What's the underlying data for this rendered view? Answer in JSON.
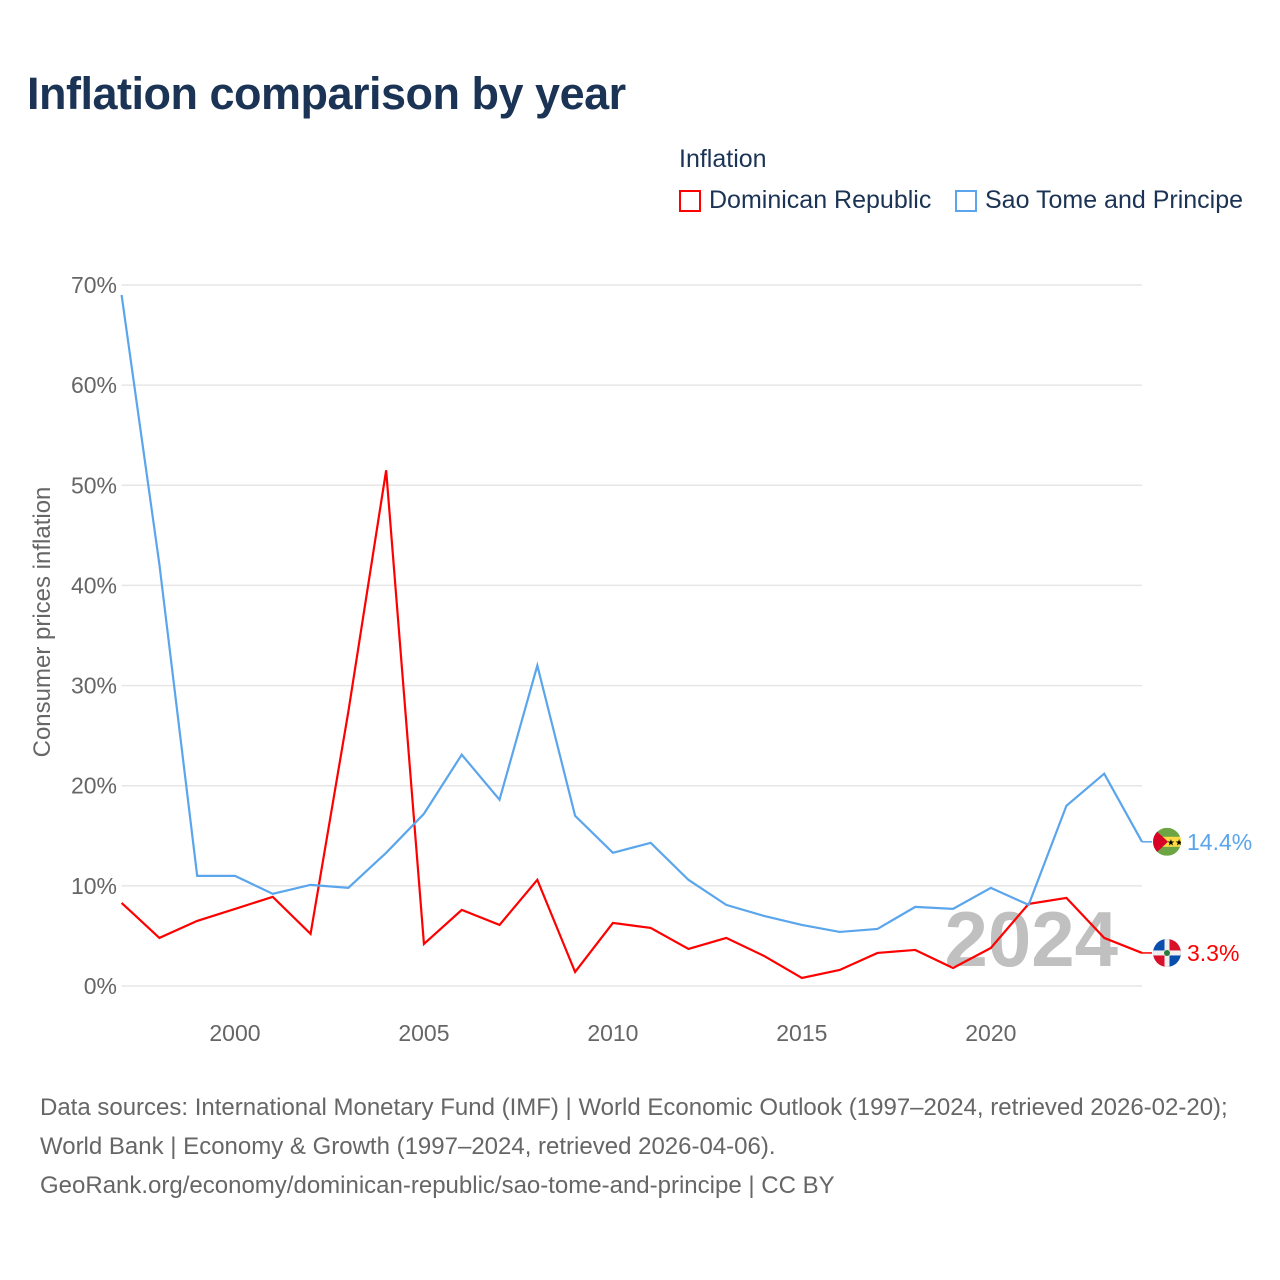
{
  "title": "Inflation comparison by year",
  "legend": {
    "title": "Inflation",
    "items": [
      {
        "label": "Dominican Republic",
        "color": "#ff0000"
      },
      {
        "label": "Sao Tome and Principe",
        "color": "#5aa5ec"
      }
    ]
  },
  "watermark_year": "2024",
  "footer": {
    "sources": "Data sources: International Monetary Fund (IMF) | World Economic Outlook (1997–2024, retrieved 2026-02-20); World Bank | Economy & Growth (1997–2024, retrieved 2026-04-06).",
    "credit": "GeoRank.org/economy/dominican-republic/sao-tome-and-principe | CC BY"
  },
  "chart_data": {
    "type": "line",
    "title": "Inflation comparison by year",
    "xlabel": "",
    "ylabel": "Consumer prices inflation",
    "xlim": [
      1997,
      2024
    ],
    "ylim": [
      0,
      70
    ],
    "x_ticks": [
      "2000",
      "2005",
      "2010",
      "2015",
      "2020"
    ],
    "y_ticks": [
      "0%",
      "10%",
      "20%",
      "30%",
      "40%",
      "50%",
      "60%",
      "70%"
    ],
    "grid": true,
    "legend_position": "top-right",
    "x": [
      1997,
      1998,
      1999,
      2000,
      2001,
      2002,
      2003,
      2004,
      2005,
      2006,
      2007,
      2008,
      2009,
      2010,
      2011,
      2012,
      2013,
      2014,
      2015,
      2016,
      2017,
      2018,
      2019,
      2020,
      2021,
      2022,
      2023,
      2024
    ],
    "series": [
      {
        "name": "Dominican Republic",
        "color": "#ff0000",
        "end_label": "3.3%",
        "values": [
          8.3,
          4.8,
          6.5,
          7.7,
          8.9,
          5.2,
          27.4,
          51.5,
          4.2,
          7.6,
          6.1,
          10.6,
          1.4,
          6.3,
          5.8,
          3.7,
          4.8,
          3.0,
          0.8,
          1.6,
          3.3,
          3.6,
          1.8,
          3.8,
          8.2,
          8.8,
          4.8,
          3.3
        ]
      },
      {
        "name": "Sao Tome and Principe",
        "color": "#5aa5ec",
        "end_label": "14.4%",
        "values": [
          69.0,
          42.1,
          11.0,
          11.0,
          9.2,
          10.1,
          9.8,
          13.3,
          17.2,
          23.1,
          18.6,
          32.0,
          17.0,
          13.3,
          14.3,
          10.6,
          8.1,
          7.0,
          6.1,
          5.4,
          5.7,
          7.9,
          7.7,
          9.8,
          8.1,
          18.0,
          21.2,
          14.4
        ]
      }
    ]
  }
}
